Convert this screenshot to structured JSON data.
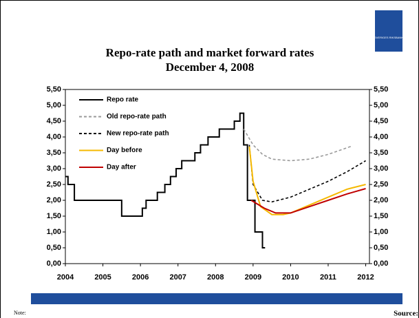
{
  "chart_data": {
    "type": "line",
    "title": "Repo-rate path and market forward rates",
    "subtitle": "December 4, 2008",
    "xlim": [
      2004,
      2012.1
    ],
    "xticks": [
      2004,
      2005,
      2006,
      2007,
      2008,
      2009,
      2010,
      2011,
      2012
    ],
    "ylim": [
      0,
      5.5
    ],
    "yticks": [
      {
        "value": 0,
        "label": "0,00"
      },
      {
        "value": 0.5,
        "label": "0,50"
      },
      {
        "value": 1,
        "label": "1,00"
      },
      {
        "value": 1.5,
        "label": "1,50"
      },
      {
        "value": 2,
        "label": "2,00"
      },
      {
        "value": 2.5,
        "label": "2,50"
      },
      {
        "value": 3,
        "label": "3,00"
      },
      {
        "value": 3.5,
        "label": "3,50"
      },
      {
        "value": 4,
        "label": "4,00"
      },
      {
        "value": 4.5,
        "label": "4,50"
      },
      {
        "value": 5,
        "label": "5,00"
      },
      {
        "value": 5.5,
        "label": "5,50"
      }
    ],
    "series": [
      {
        "name": "Repo rate",
        "color": "#000000",
        "dash": "solid",
        "x": [
          2004,
          2004.07,
          2004.07,
          2004.24,
          2004.24,
          2005.5,
          2005.5,
          2006.05,
          2006.05,
          2006.15,
          2006.15,
          2006.45,
          2006.45,
          2006.65,
          2006.65,
          2006.8,
          2006.8,
          2006.95,
          2006.95,
          2007.1,
          2007.1,
          2007.45,
          2007.45,
          2007.6,
          2007.6,
          2007.8,
          2007.8,
          2008.1,
          2008.1,
          2008.5,
          2008.5,
          2008.65,
          2008.65,
          2008.75,
          2008.75,
          2008.85,
          2008.85,
          2009.05,
          2009.05,
          2009.25,
          2009.25,
          2009.32
        ],
        "values": [
          2.75,
          2.75,
          2.5,
          2.5,
          2,
          2,
          1.5,
          1.5,
          1.75,
          1.75,
          2,
          2,
          2.25,
          2.25,
          2.5,
          2.5,
          2.75,
          2.75,
          3,
          3,
          3.25,
          3.25,
          3.5,
          3.5,
          3.75,
          3.75,
          4,
          4,
          4.25,
          4.25,
          4.5,
          4.5,
          4.75,
          4.75,
          3.75,
          3.75,
          2,
          2,
          1,
          1,
          0.5,
          0.5
        ]
      },
      {
        "name": "Old repo-rate path",
        "color": "#999999",
        "dash": "dashed",
        "x": [
          2008.75,
          2009,
          2009.25,
          2009.5,
          2010,
          2010.5,
          2011,
          2011.6
        ],
        "values": [
          4.25,
          3.75,
          3.45,
          3.3,
          3.25,
          3.3,
          3.45,
          3.7
        ]
      },
      {
        "name": "New repo-rate path",
        "color": "#000000",
        "dash": "dashed",
        "x": [
          2008.9,
          2009,
          2009.25,
          2009.5,
          2010,
          2010.5,
          2011,
          2011.5,
          2012
        ],
        "values": [
          3.75,
          2.5,
          2,
          1.95,
          2.1,
          2.35,
          2.6,
          2.9,
          3.25
        ]
      },
      {
        "name": "Day before",
        "color": "#f5b800",
        "dash": "solid",
        "x": [
          2008.9,
          2009,
          2009.2,
          2009.5,
          2009.8,
          2010,
          2010.5,
          2011,
          2011.5,
          2012
        ],
        "values": [
          3.7,
          2.6,
          1.8,
          1.55,
          1.55,
          1.6,
          1.85,
          2.1,
          2.35,
          2.5
        ]
      },
      {
        "name": "Day after",
        "color": "#c00000",
        "dash": "solid",
        "x": [
          2008.95,
          2009.3,
          2009.6,
          2010,
          2010.5,
          2011,
          2011.5,
          2012
        ],
        "values": [
          2,
          1.75,
          1.6,
          1.6,
          1.8,
          2,
          2.2,
          2.37
        ]
      }
    ]
  },
  "logo": "SVERIGES RIKSBANK",
  "footer": {
    "note": "Note:",
    "source": "Source:"
  }
}
